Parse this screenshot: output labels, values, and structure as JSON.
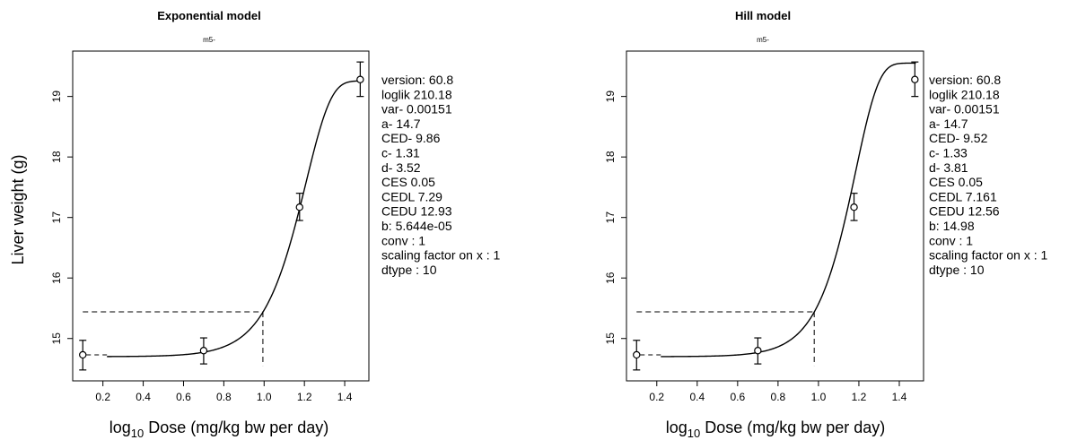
{
  "ylabel": "Liver weight (g)",
  "xlabel": {
    "prefix": "log",
    "subscript": "10",
    "suffix": " Dose (mg/kg bw per day)"
  },
  "chart_data": [
    {
      "type": "scatter",
      "title": "Exponential model",
      "subtitle": "m5-",
      "xlim": [
        0.05,
        1.52
      ],
      "ylim": [
        14.3,
        19.75
      ],
      "x_ticks": [
        "0.2",
        "0.4",
        "0.6",
        "0.8",
        "1.0",
        "1.2",
        "1.4"
      ],
      "y_ticks": [
        "15",
        "16",
        "17",
        "18",
        "19"
      ],
      "points": [
        {
          "x": 0.1,
          "y": 14.73,
          "lo": 14.48,
          "hi": 14.97
        },
        {
          "x": 0.7,
          "y": 14.8,
          "lo": 14.58,
          "hi": 15.01
        },
        {
          "x": 1.176,
          "y": 17.17,
          "lo": 16.95,
          "hi": 17.4
        },
        {
          "x": 1.477,
          "y": 19.28,
          "lo": 19.0,
          "hi": 19.57
        }
      ],
      "curve": {
        "a": 14.7,
        "CED": 9.86,
        "c": 1.31,
        "d": 3.52,
        "CES": 0.05
      },
      "ced_marker": {
        "log10_ced": 0.994,
        "y": 15.44
      },
      "params": [
        "version: 60.8",
        "loglik   210.18",
        "var-   0.00151",
        "a-   14.7",
        "CED-   9.86",
        "c-   1.31",
        "d-   3.52",
        "CES   0.05",
        "CEDL   7.29",
        "CEDU   12.93",
        "b:  5.644e-05",
        "conv :  1",
        "scaling factor on x :  1",
        "dtype :  10"
      ]
    },
    {
      "type": "scatter",
      "title": "Hill model",
      "subtitle": "m5-",
      "xlim": [
        0.05,
        1.52
      ],
      "ylim": [
        14.3,
        19.75
      ],
      "x_ticks": [
        "0.2",
        "0.4",
        "0.6",
        "0.8",
        "1.0",
        "1.2",
        "1.4"
      ],
      "y_ticks": [
        "15",
        "16",
        "17",
        "18",
        "19"
      ],
      "points": [
        {
          "x": 0.1,
          "y": 14.73,
          "lo": 14.48,
          "hi": 14.97
        },
        {
          "x": 0.7,
          "y": 14.8,
          "lo": 14.58,
          "hi": 15.01
        },
        {
          "x": 1.176,
          "y": 17.17,
          "lo": 16.95,
          "hi": 17.4
        },
        {
          "x": 1.477,
          "y": 19.28,
          "lo": 19.0,
          "hi": 19.57
        }
      ],
      "curve": {
        "a": 14.7,
        "CED": 9.52,
        "c": 1.33,
        "d": 3.81,
        "CES": 0.05
      },
      "ced_marker": {
        "log10_ced": 0.979,
        "y": 15.44
      },
      "params": [
        "version: 60.8",
        "loglik   210.18",
        "var-   0.00151",
        "a-   14.7",
        "CED-   9.52",
        "c-   1.33",
        "d-   3.81",
        "CES   0.05",
        "CEDL   7.161",
        "CEDU   12.56",
        "b:  14.98",
        "conv :  1",
        "scaling factor on x :  1",
        "dtype :  10"
      ]
    }
  ]
}
